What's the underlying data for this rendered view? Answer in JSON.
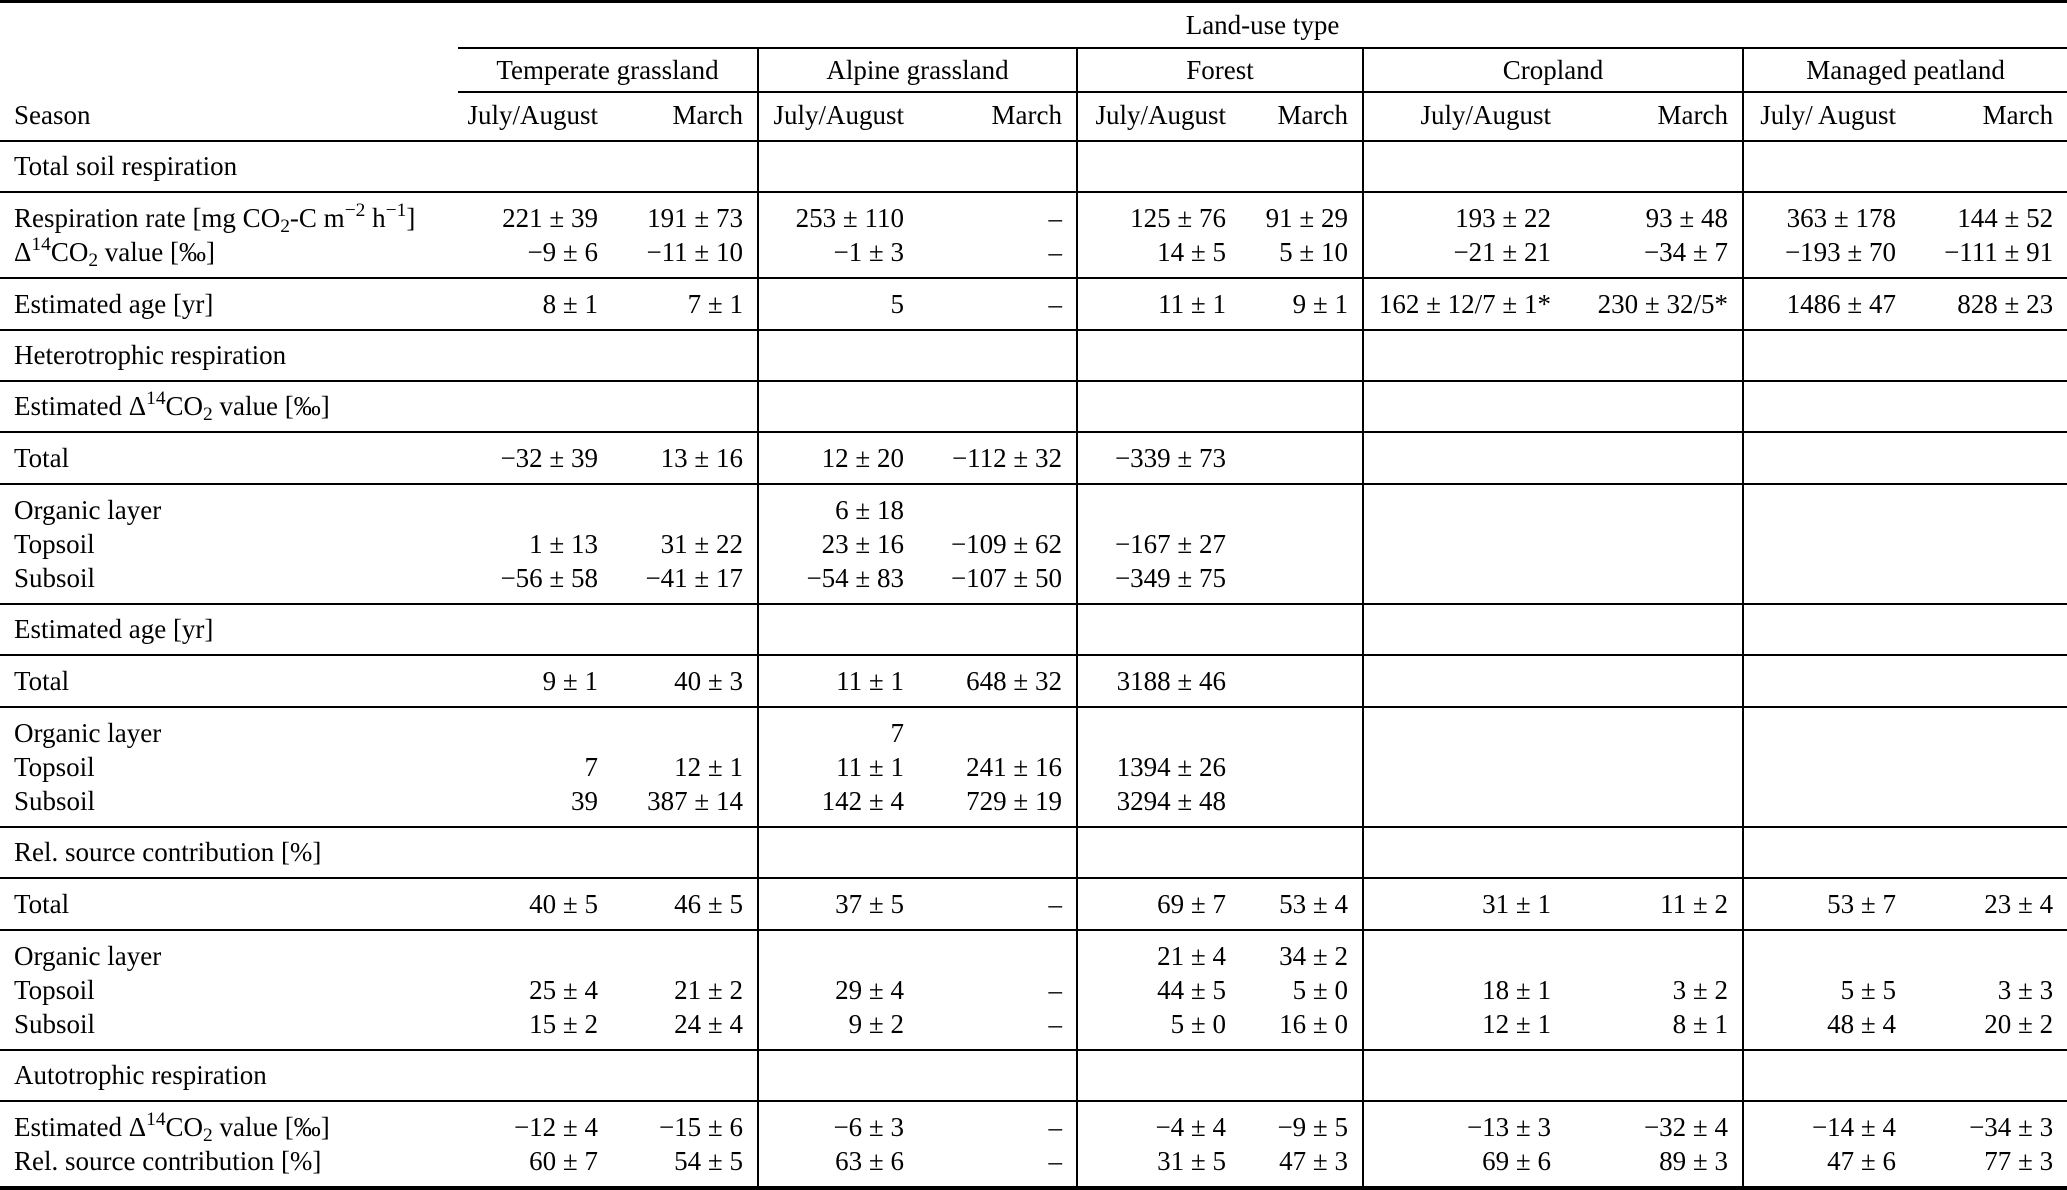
{
  "table": {
    "spanner": "Land-use type",
    "row_header": "Season",
    "groups": [
      {
        "name": "Temperate grassland",
        "cols": [
          "July/August",
          "March"
        ]
      },
      {
        "name": "Alpine grassland",
        "cols": [
          "July/August",
          "March"
        ]
      },
      {
        "name": "Forest",
        "cols": [
          "July/August",
          "March"
        ]
      },
      {
        "name": "Cropland",
        "cols": [
          "July/August",
          "March"
        ]
      },
      {
        "name": "Managed peatland",
        "cols": [
          "July/ August",
          "March"
        ]
      }
    ],
    "blocks": [
      {
        "rows": [
          {
            "type": "section",
            "label_html": "Total soil respiration",
            "values": [
              "",
              "",
              "",
              "",
              "",
              "",
              "",
              "",
              "",
              ""
            ]
          }
        ]
      },
      {
        "rows": [
          {
            "type": "data",
            "label_html": "Respiration rate [mg CO<sub>2</sub>-C m<sup>−2</sup> h<sup>−1</sup>]",
            "values": [
              "221 ± 39",
              "191 ± 73",
              "253 ± 110",
              "–",
              "125 ± 76",
              "91 ± 29",
              "193 ± 22",
              "93 ± 48",
              "363 ± 178",
              "144 ± 52"
            ]
          },
          {
            "type": "data",
            "label_html": "Δ<sup>14</sup>CO<sub>2</sub> value [‰]",
            "values": [
              "−9 ± 6",
              "−11 ± 10",
              "−1 ± 3",
              "–",
              "14 ± 5",
              "5 ± 10",
              "−21 ± 21",
              "−34 ± 7",
              "−193 ± 70",
              "−111 ± 91"
            ]
          }
        ]
      },
      {
        "rows": [
          {
            "type": "data",
            "label_html": "Estimated age [yr]",
            "values": [
              "8 ± 1",
              "7 ± 1",
              "5",
              "–",
              "11 ± 1",
              "9 ± 1",
              "162 ± 12/7 ± 1*",
              "230 ± 32/5*",
              "1486 ± 47",
              "828 ± 23"
            ]
          }
        ]
      },
      {
        "rows": [
          {
            "type": "section",
            "label_html": "Heterotrophic respiration",
            "values": [
              "",
              "",
              "",
              "",
              "",
              "",
              "",
              "",
              "",
              ""
            ]
          }
        ]
      },
      {
        "rows": [
          {
            "type": "section",
            "label_html": "Estimated Δ<sup>14</sup>CO<sub>2</sub> value [‰]",
            "values": [
              "",
              "",
              "",
              "",
              "",
              "",
              "",
              "",
              "",
              ""
            ]
          }
        ]
      },
      {
        "rows": [
          {
            "type": "data",
            "label_html": "Total",
            "values": [
              "−32 ± 39",
              "13 ± 16",
              "12 ± 20",
              "−112 ± 32",
              "−339 ± 73",
              "",
              "",
              "",
              "",
              ""
            ]
          }
        ]
      },
      {
        "rows": [
          {
            "type": "data",
            "label_html": "Organic layer",
            "values": [
              "",
              "",
              "6 ± 18",
              "",
              "",
              "",
              "",
              "",
              "",
              ""
            ]
          },
          {
            "type": "data",
            "label_html": "Topsoil",
            "values": [
              "1 ± 13",
              "31 ± 22",
              "23 ± 16",
              "−109 ± 62",
              "−167 ± 27",
              "",
              "",
              "",
              "",
              ""
            ]
          },
          {
            "type": "data",
            "label_html": "Subsoil",
            "values": [
              "−56 ± 58",
              "−41 ± 17",
              "−54 ± 83",
              "−107 ± 50",
              "−349 ± 75",
              "",
              "",
              "",
              "",
              ""
            ]
          }
        ]
      },
      {
        "rows": [
          {
            "type": "section",
            "label_html": "Estimated age [yr]",
            "values": [
              "",
              "",
              "",
              "",
              "",
              "",
              "",
              "",
              "",
              ""
            ]
          }
        ]
      },
      {
        "rows": [
          {
            "type": "data",
            "label_html": "Total",
            "values": [
              "9 ± 1",
              "40 ± 3",
              "11 ± 1",
              "648 ± 32",
              "3188 ± 46",
              "",
              "",
              "",
              "",
              ""
            ]
          }
        ]
      },
      {
        "rows": [
          {
            "type": "data",
            "label_html": "Organic layer",
            "values": [
              "",
              "",
              "7",
              "",
              "",
              "",
              "",
              "",
              "",
              ""
            ]
          },
          {
            "type": "data",
            "label_html": "Topsoil",
            "values": [
              "7",
              "12 ± 1",
              "11 ± 1",
              "241 ± 16",
              "1394 ± 26",
              "",
              "",
              "",
              "",
              ""
            ]
          },
          {
            "type": "data",
            "label_html": "Subsoil",
            "values": [
              "39",
              "387 ± 14",
              "142 ± 4",
              "729 ± 19",
              "3294 ± 48",
              "",
              "",
              "",
              "",
              ""
            ]
          }
        ]
      },
      {
        "rows": [
          {
            "type": "section",
            "label_html": "Rel. source contribution [%]",
            "values": [
              "",
              "",
              "",
              "",
              "",
              "",
              "",
              "",
              "",
              ""
            ]
          }
        ]
      },
      {
        "rows": [
          {
            "type": "data",
            "label_html": "Total",
            "values": [
              "40 ± 5",
              "46 ± 5",
              "37 ± 5",
              "–",
              "69 ± 7",
              "53 ± 4",
              "31 ± 1",
              "11 ± 2",
              "53 ± 7",
              "23 ± 4"
            ]
          }
        ]
      },
      {
        "rows": [
          {
            "type": "data",
            "label_html": "Organic layer",
            "values": [
              "",
              "",
              "",
              "",
              "21 ± 4",
              "34 ± 2",
              "",
              "",
              "",
              ""
            ]
          },
          {
            "type": "data",
            "label_html": "Topsoil",
            "values": [
              "25 ± 4",
              "21 ± 2",
              "29 ± 4",
              "–",
              "44 ± 5",
              "5 ± 0",
              "18 ± 1",
              "3 ± 2",
              "5 ± 5",
              "3 ± 3"
            ]
          },
          {
            "type": "data",
            "label_html": "Subsoil",
            "values": [
              "15 ± 2",
              "24 ± 4",
              "9 ± 2",
              "–",
              "5 ± 0",
              "16 ± 0",
              "12 ± 1",
              "8 ± 1",
              "48 ± 4",
              "20 ± 2"
            ]
          }
        ]
      },
      {
        "rows": [
          {
            "type": "section",
            "label_html": "Autotrophic respiration",
            "values": [
              "",
              "",
              "",
              "",
              "",
              "",
              "",
              "",
              "",
              ""
            ]
          }
        ]
      },
      {
        "rows": [
          {
            "type": "data",
            "label_html": "Estimated Δ<sup>14</sup>CO<sub>2</sub> value [‰]",
            "values": [
              "−12 ± 4",
              "−15 ± 6",
              "−6 ± 3",
              "–",
              "−4 ± 4",
              "−9 ± 5",
              "−13 ± 3",
              "−32 ± 4",
              "−14 ± 4",
              "−34 ± 3"
            ]
          },
          {
            "type": "data",
            "label_html": "Rel. source contribution [%]",
            "values": [
              "60 ± 7",
              "54 ± 5",
              "63 ± 6",
              "–",
              "31 ± 5",
              "47 ± 3",
              "69 ± 6",
              "89 ± 3",
              "47 ± 6",
              "77 ± 3"
            ]
          }
        ]
      }
    ]
  }
}
